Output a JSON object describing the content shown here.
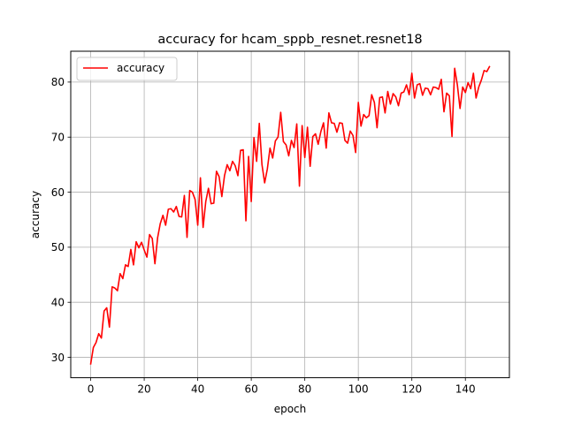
{
  "chart_data": {
    "type": "line",
    "title": "accuracy for hcam_sppb_resnet.resnet18",
    "xlabel": "epoch",
    "ylabel": "accuracy",
    "xlim": [
      -7.45,
      156.45
    ],
    "ylim": [
      26.3,
      85.6
    ],
    "xticks": [
      0,
      20,
      40,
      60,
      80,
      100,
      120,
      140
    ],
    "yticks": [
      30,
      40,
      50,
      60,
      70,
      80
    ],
    "grid": true,
    "legend_position": "top-left",
    "series": [
      {
        "name": "accuracy",
        "color": "#ff0000",
        "x": [
          0,
          1,
          2,
          3,
          4,
          5,
          6,
          7,
          8,
          9,
          10,
          11,
          12,
          13,
          14,
          15,
          16,
          17,
          18,
          19,
          20,
          21,
          22,
          23,
          24,
          25,
          26,
          27,
          28,
          29,
          30,
          31,
          32,
          33,
          34,
          35,
          36,
          37,
          38,
          39,
          40,
          41,
          42,
          43,
          44,
          45,
          46,
          47,
          48,
          49,
          50,
          51,
          52,
          53,
          54,
          55,
          56,
          57,
          58,
          59,
          60,
          61,
          62,
          63,
          64,
          65,
          66,
          67,
          68,
          69,
          70,
          71,
          72,
          73,
          74,
          75,
          76,
          77,
          78,
          79,
          80,
          81,
          82,
          83,
          84,
          85,
          86,
          87,
          88,
          89,
          90,
          91,
          92,
          93,
          94,
          95,
          96,
          97,
          98,
          99,
          100,
          101,
          102,
          103,
          104,
          105,
          106,
          107,
          108,
          109,
          110,
          111,
          112,
          113,
          114,
          115,
          116,
          117,
          118,
          119,
          120,
          121,
          122,
          123,
          124,
          125,
          126,
          127,
          128,
          129,
          130,
          131,
          132,
          133,
          134,
          135,
          136,
          137,
          138,
          139,
          140,
          141,
          142,
          143,
          144,
          145,
          146,
          147,
          148,
          149
        ],
        "values": [
          28.8,
          31.8,
          32.7,
          34.3,
          33.5,
          38.4,
          39.0,
          35.5,
          42.8,
          42.6,
          42.1,
          45.2,
          44.3,
          46.8,
          46.5,
          49.6,
          46.8,
          51.0,
          49.9,
          50.9,
          49.5,
          48.2,
          52.3,
          51.6,
          47.0,
          51.7,
          54.3,
          55.8,
          54.0,
          56.9,
          57.0,
          56.4,
          57.4,
          55.6,
          55.5,
          59.4,
          51.8,
          60.3,
          60.0,
          58.7,
          54.0,
          62.6,
          53.6,
          58.3,
          60.7,
          57.9,
          58.0,
          63.8,
          62.8,
          59.2,
          63.0,
          65.0,
          63.9,
          65.6,
          64.8,
          63.0,
          67.6,
          67.7,
          54.8,
          66.5,
          58.3,
          69.9,
          65.6,
          72.5,
          65.0,
          61.7,
          64.2,
          68.0,
          66.2,
          69.3,
          70.0,
          74.5,
          69.2,
          68.6,
          66.6,
          69.4,
          68.1,
          72.4,
          61.1,
          72.1,
          66.3,
          71.8,
          64.7,
          70.1,
          70.6,
          68.7,
          71.0,
          72.6,
          68.0,
          74.4,
          72.6,
          72.5,
          70.9,
          72.6,
          72.5,
          69.4,
          68.9,
          71.1,
          70.3,
          67.2,
          76.3,
          72.0,
          74.1,
          73.5,
          73.9,
          77.7,
          76.3,
          71.7,
          77.2,
          77.3,
          74.4,
          78.3,
          76.0,
          77.9,
          77.3,
          75.7,
          78.0,
          78.2,
          79.5,
          77.7,
          81.6,
          77.1,
          79.5,
          79.7,
          77.6,
          78.9,
          78.8,
          77.7,
          79.1,
          79.0,
          78.7,
          80.5,
          74.6,
          78.0,
          77.5,
          70.1,
          82.5,
          79.5,
          75.2,
          79.1,
          78.1,
          79.9,
          78.8,
          81.6,
          77.1,
          79.1,
          80.4,
          82.1,
          81.9,
          82.8
        ]
      }
    ]
  }
}
